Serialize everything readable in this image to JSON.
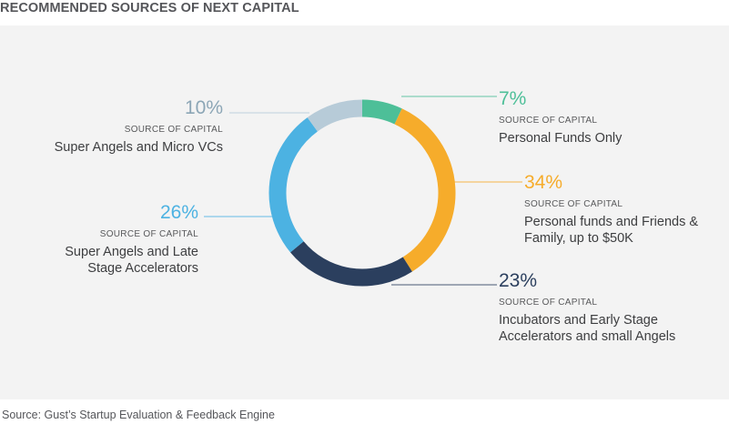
{
  "title": "RECOMMENDED SOURCES OF NEXT CAPITAL",
  "footer": "Source: Gust’s Startup Evaluation & Feedback Engine",
  "chart_data": {
    "type": "pie",
    "style": "donut",
    "slices": [
      {
        "pct_label": "7%",
        "value": 7,
        "caption": "SOURCE OF CAPITAL",
        "name": "Personal Funds Only",
        "color": "#4dbf98",
        "side": "right"
      },
      {
        "pct_label": "34%",
        "value": 34,
        "caption": "SOURCE OF CAPITAL",
        "name": "Personal funds and Friends & Family, up to $50K",
        "color": "#f6ac2b",
        "side": "right"
      },
      {
        "pct_label": "23%",
        "value": 23,
        "caption": "SOURCE OF CAPITAL",
        "name": "Incubators and Early Stage Accelerators and small Angels",
        "color": "#2b3f5e",
        "side": "right"
      },
      {
        "pct_label": "26%",
        "value": 26,
        "caption": "SOURCE OF CAPITAL",
        "name": "Super Angels and Late Stage Accelerators",
        "color": "#4cb2e2",
        "side": "left"
      },
      {
        "pct_label": "10%",
        "value": 10,
        "caption": "SOURCE OF CAPITAL",
        "name": "Super Angels and Micro VCs",
        "color": "#b7cbd8",
        "side": "left"
      }
    ]
  }
}
